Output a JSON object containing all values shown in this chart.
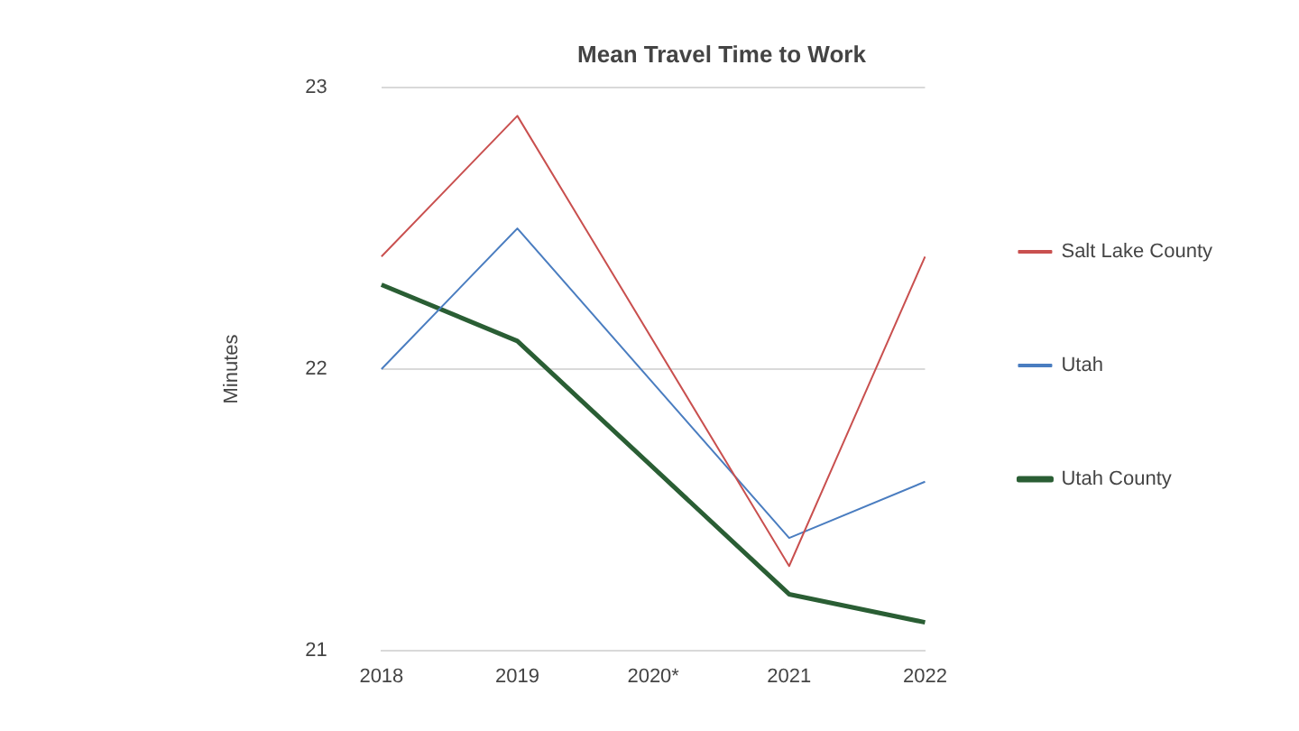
{
  "chart_data": {
    "type": "line",
    "title": "Mean Travel Time to Work",
    "ylabel": "Minutes",
    "categories": [
      "2018",
      "2019",
      "2020*",
      "2021",
      "2022"
    ],
    "series": [
      {
        "name": "Salt Lake County",
        "color": "#c9504f",
        "values": [
          22.4,
          22.9,
          null,
          21.3,
          22.4
        ]
      },
      {
        "name": "Utah",
        "color": "#4a7dc0",
        "values": [
          22.0,
          22.5,
          null,
          21.4,
          21.6
        ]
      },
      {
        "name": "Utah County",
        "color": "#2a5e34",
        "values": [
          22.3,
          22.1,
          null,
          21.2,
          21.1
        ]
      }
    ],
    "ylim": [
      21,
      23
    ],
    "yticks": [
      21,
      22,
      23
    ],
    "grid": "y",
    "legend": "right",
    "marker": "none",
    "line_style": "solid"
  }
}
